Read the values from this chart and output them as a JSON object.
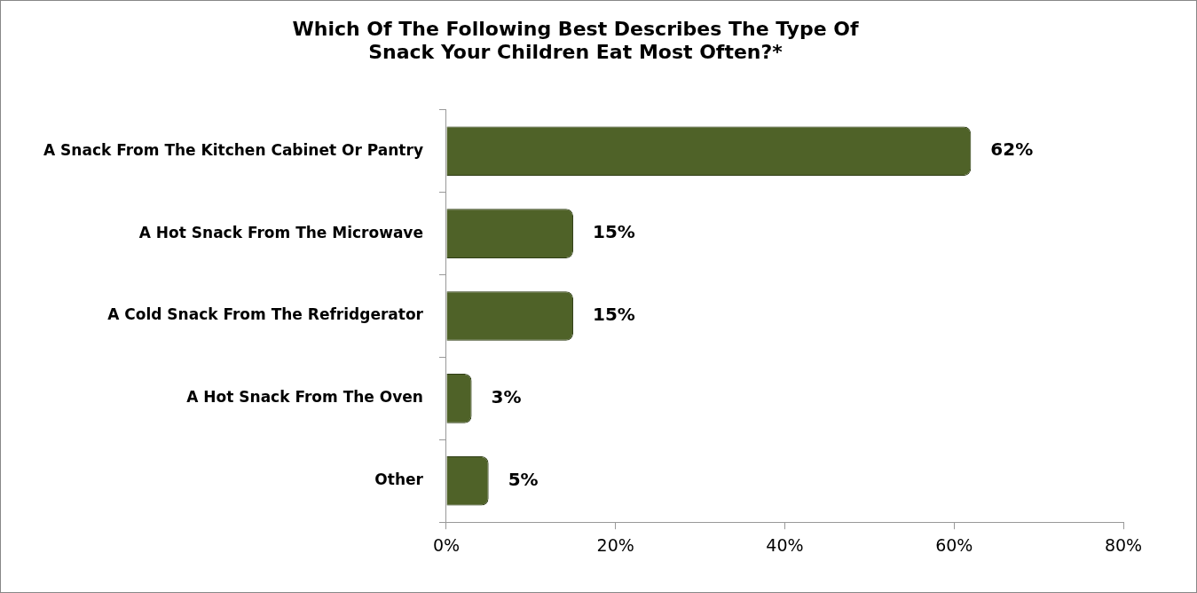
{
  "chart_data": {
    "type": "bar",
    "orientation": "horizontal",
    "title": "Which Of The Following Best Describes The Type Of\nSnack Your Children Eat Most Often?*",
    "categories": [
      "A Snack From The Kitchen Cabinet Or Pantry",
      "A Hot Snack From The Microwave",
      "A Cold Snack From The Refridgerator",
      "A Hot Snack From The Oven",
      "Other"
    ],
    "values": [
      62,
      15,
      15,
      3,
      5
    ],
    "value_labels": [
      "62%",
      "15%",
      "15%",
      "3%",
      "5%"
    ],
    "color": "#4f6228",
    "xlim": [
      0,
      80
    ],
    "xticks": [
      {
        "value": 0,
        "label": "0%"
      },
      {
        "value": 20,
        "label": "20%"
      },
      {
        "value": 40,
        "label": "40%"
      },
      {
        "value": 60,
        "label": "60%"
      },
      {
        "value": 80,
        "label": "80%"
      }
    ],
    "grid": false,
    "legend": false
  }
}
